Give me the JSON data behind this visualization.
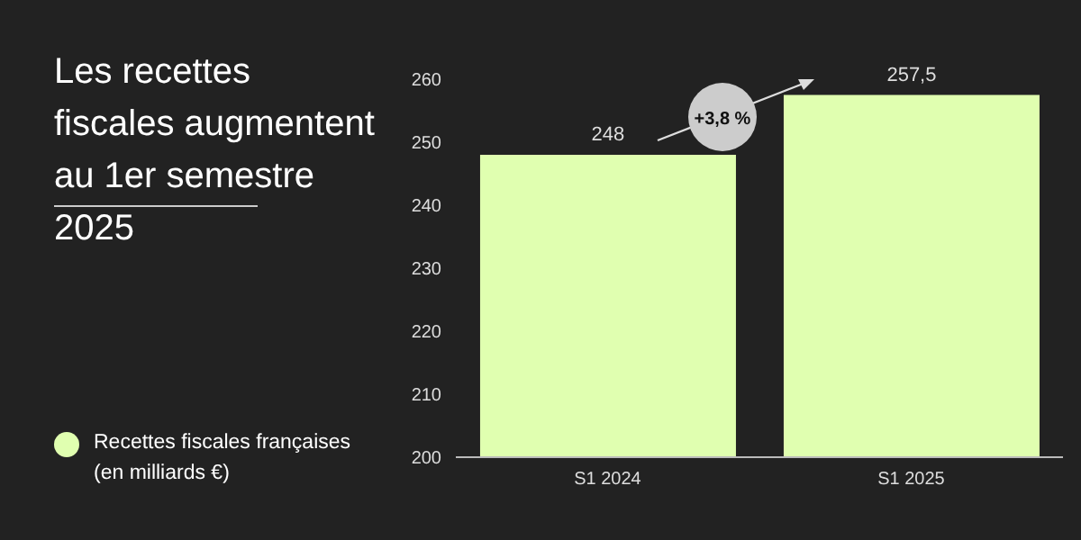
{
  "chart_data": {
    "type": "bar",
    "title": "Les recettes fiscales augmentent au 1er semestre 2025",
    "categories": [
      "S1 2024",
      "S1 2025"
    ],
    "series": [
      {
        "name": "Recettes fiscales françaises (en milliards €)",
        "color": "#e0ffb0",
        "values": [
          248,
          257.5
        ],
        "value_labels": [
          "248",
          "257,5"
        ]
      }
    ],
    "ylim": [
      200,
      260
    ],
    "yticks": [
      200,
      210,
      220,
      230,
      240,
      250,
      260
    ],
    "legend": "bottom left",
    "annotations": [
      "+3,8 %"
    ]
  }
}
